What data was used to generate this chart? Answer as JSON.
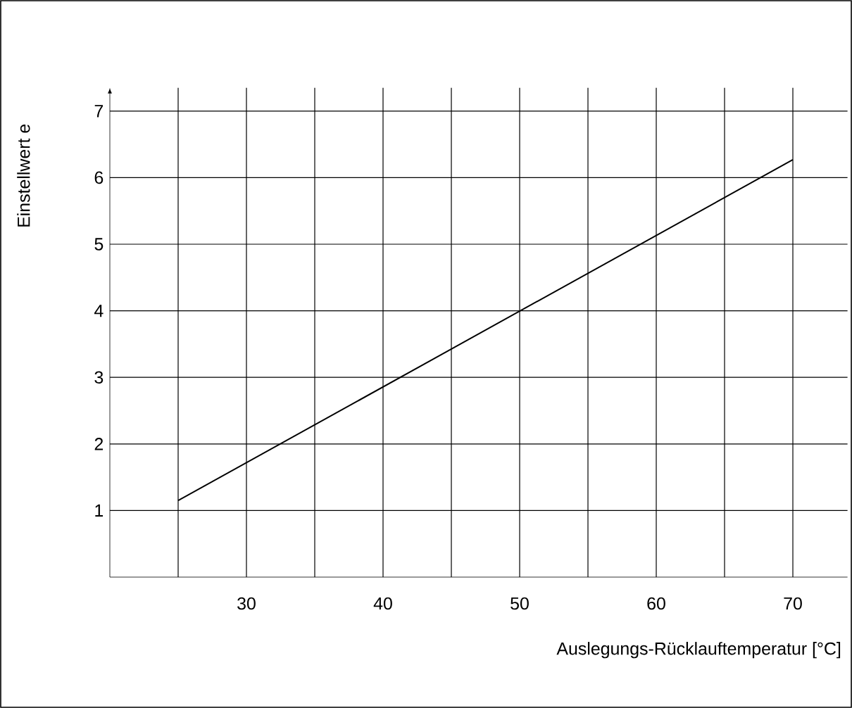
{
  "chart_data": {
    "type": "line",
    "xlabel": "Auslegungs-Rücklauftemperatur [°C]",
    "ylabel": "Einstellwert e",
    "x": [
      25,
      70
    ],
    "series": [
      {
        "color": "#000000",
        "values": [
          1.15,
          6.27
        ]
      }
    ],
    "xlim": [
      20,
      74
    ],
    "ylim": [
      0,
      7.35
    ],
    "xticks": [
      {
        "value": 25,
        "label": null
      },
      30,
      {
        "value": 35,
        "label": null
      },
      40,
      {
        "value": 45,
        "label": null
      },
      50,
      {
        "value": 55,
        "label": null
      },
      60,
      {
        "value": 65,
        "label": null
      },
      70
    ],
    "yticks": [
      1,
      2,
      3,
      4,
      5,
      6,
      7
    ],
    "grid": true,
    "marker": "none",
    "line_style": "solid"
  }
}
